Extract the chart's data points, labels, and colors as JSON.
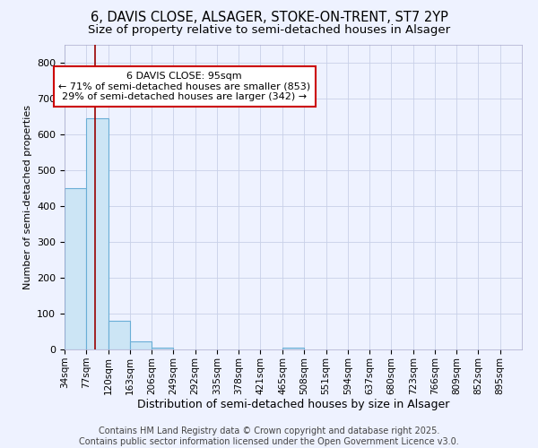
{
  "title1": "6, DAVIS CLOSE, ALSAGER, STOKE-ON-TRENT, ST7 2YP",
  "title2": "Size of property relative to semi-detached houses in Alsager",
  "xlabel": "Distribution of semi-detached houses by size in Alsager",
  "ylabel": "Number of semi-detached properties",
  "bin_edges": [
    34,
    77,
    120,
    163,
    206,
    249,
    292,
    335,
    378,
    421,
    465,
    508,
    551,
    594,
    637,
    680,
    723,
    766,
    809,
    852,
    895
  ],
  "bar_heights": [
    450,
    645,
    80,
    22,
    5,
    0,
    0,
    0,
    0,
    0,
    5,
    0,
    0,
    0,
    0,
    0,
    0,
    0,
    0,
    0
  ],
  "bar_color": "#cce5f5",
  "bar_edgecolor": "#6aaed6",
  "property_size": 95,
  "vline_color": "#990000",
  "annotation_text": "6 DAVIS CLOSE: 95sqm\n← 71% of semi-detached houses are smaller (853)\n29% of semi-detached houses are larger (342) →",
  "annotation_boxcolor": "white",
  "annotation_edgecolor": "#cc0000",
  "ylim": [
    0,
    850
  ],
  "yticks": [
    0,
    100,
    200,
    300,
    400,
    500,
    600,
    700,
    800
  ],
  "background_color": "#eef2ff",
  "footer_text": "Contains HM Land Registry data © Crown copyright and database right 2025.\nContains public sector information licensed under the Open Government Licence v3.0.",
  "grid_color": "#c8d0e8",
  "title1_fontsize": 10.5,
  "title2_fontsize": 9.5,
  "annotation_fontsize": 8,
  "footer_fontsize": 7,
  "ylabel_fontsize": 8,
  "xlabel_fontsize": 9
}
